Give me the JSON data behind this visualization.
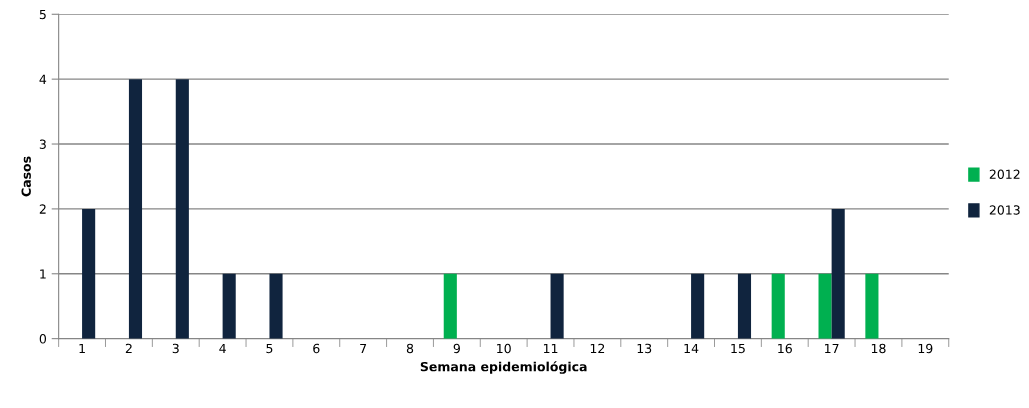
{
  "chart_data": {
    "type": "bar",
    "xlabel": "Semana epidemiológica",
    "ylabel": "Casos",
    "categories": [
      "1",
      "2",
      "3",
      "4",
      "5",
      "6",
      "7",
      "8",
      "9",
      "10",
      "11",
      "12",
      "13",
      "14",
      "15",
      "16",
      "17",
      "18",
      "19"
    ],
    "series": [
      {
        "name": "2012",
        "color": "#00b050",
        "values": [
          0,
          0,
          0,
          0,
          0,
          0,
          0,
          0,
          1,
          0,
          0,
          0,
          0,
          0,
          0,
          1,
          1,
          1,
          0
        ]
      },
      {
        "name": "2013",
        "color": "#10243e",
        "values": [
          2,
          4,
          4,
          1,
          1,
          0,
          0,
          0,
          0,
          0,
          1,
          0,
          0,
          1,
          1,
          0,
          2,
          0,
          0
        ]
      }
    ],
    "ylim": [
      0,
      5
    ],
    "yticks": [
      0,
      1,
      2,
      3,
      4,
      5
    ],
    "grid": "y",
    "legend": "right"
  }
}
